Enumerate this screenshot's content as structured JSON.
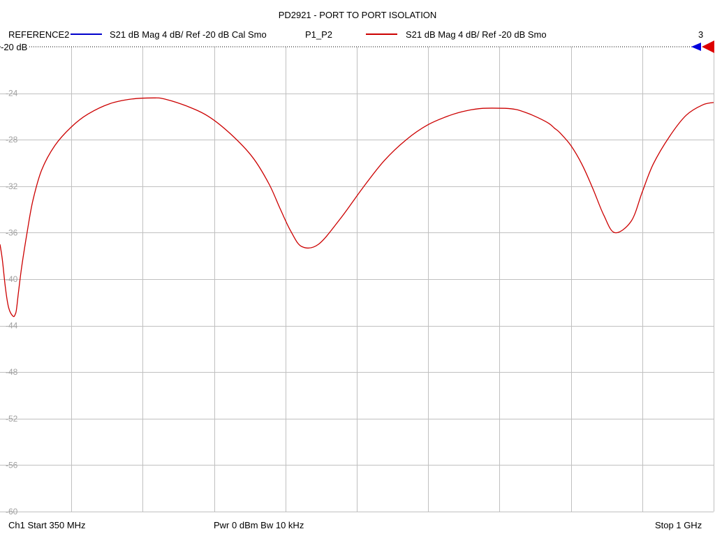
{
  "header": {
    "title": "PD2921 - PORT TO PORT ISOLATION"
  },
  "legend": {
    "trace1_name": "REFERENCE2",
    "trace1_desc": "S21  dB Mag  4 dB/ Ref -20 dB  Cal Smo",
    "trace2_name": "P1_P2",
    "trace2_desc": "S21  dB Mag  4 dB/ Ref -20 dB  Smo",
    "trace_count": "3",
    "ref_level_label": "-20 dB"
  },
  "footer": {
    "start": "Ch1  Start  350 MHz",
    "power": "Pwr  0 dBm  Bw  10 kHz",
    "stop": "Stop  1 GHz"
  },
  "colors": {
    "trace1": "#0000cc",
    "trace2": "#cc0000",
    "grid": "#c0c0c0",
    "tick_text": "#a0a0a0"
  },
  "chart_data": {
    "type": "line",
    "xlim": [
      350,
      1000
    ],
    "ylim": [
      -60,
      -20
    ],
    "x_unit": "MHz",
    "y_unit": "dB",
    "y_ticks": [
      -20,
      -24,
      -28,
      -32,
      -36,
      -40,
      -44,
      -48,
      -52,
      -56,
      -60
    ],
    "y_tick_labels": [
      "-20",
      "-24",
      "-28",
      "-32",
      "-36",
      "-40",
      "-44",
      "-48",
      "-52",
      "-56",
      "-60"
    ],
    "grid": true,
    "series": [
      {
        "name": "P1_P2",
        "x": [
          350,
          352,
          355,
          358,
          362,
          364,
          365,
          367,
          370,
          375,
          380,
          388,
          400,
          415,
          430,
          450,
          470,
          490,
          500,
          520,
          540,
          560,
          580,
          595,
          605,
          615,
          625,
          640,
          660,
          680,
          700,
          720,
          740,
          760,
          775,
          790,
          810,
          820,
          830,
          840,
          850,
          855,
          860,
          870,
          880,
          890,
          900,
          910,
          925,
          935,
          945,
          960,
          975,
          990,
          1000
        ],
        "y": [
          -37.0,
          -38.2,
          -40.8,
          -42.5,
          -43.2,
          -43.0,
          -42.6,
          -41.0,
          -38.8,
          -35.8,
          -33.2,
          -30.6,
          -28.5,
          -26.9,
          -25.8,
          -24.9,
          -24.5,
          -24.4,
          -24.5,
          -25.1,
          -26.0,
          -27.5,
          -29.5,
          -31.8,
          -33.9,
          -35.9,
          -37.2,
          -37.0,
          -34.8,
          -32.2,
          -29.8,
          -28.0,
          -26.7,
          -25.9,
          -25.5,
          -25.3,
          -25.3,
          -25.4,
          -25.7,
          -26.1,
          -26.6,
          -27.0,
          -27.4,
          -28.5,
          -30.1,
          -32.2,
          -34.5,
          -36.0,
          -35.0,
          -32.5,
          -30.1,
          -27.7,
          -25.9,
          -25.0,
          -24.8
        ]
      }
    ]
  }
}
